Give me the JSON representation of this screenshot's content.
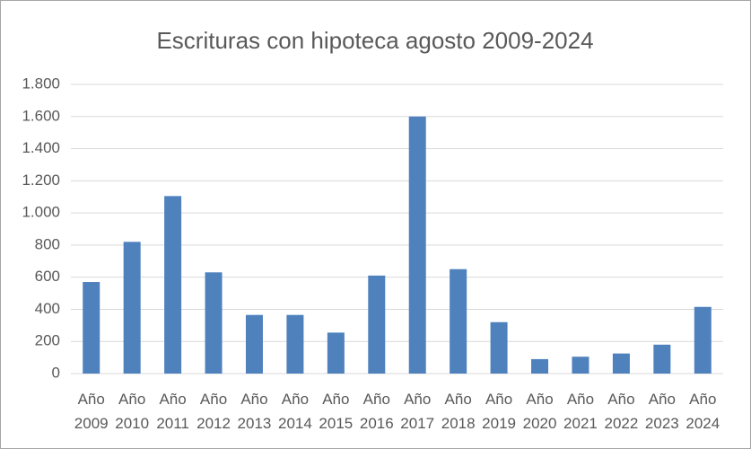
{
  "chart_data": {
    "type": "bar",
    "title": "Escrituras con hipoteca agosto 2009-2024",
    "categories": [
      "Año 2009",
      "Año 2010",
      "Año 2011",
      "Año 2012",
      "Año 2013",
      "Año 2014",
      "Año 2015",
      "Año 2016",
      "Año 2017",
      "Año 2018",
      "Año 2019",
      "Año 2020",
      "Año 2021",
      "Año 2022",
      "Año 2023",
      "Año 2024"
    ],
    "values": [
      570,
      820,
      1105,
      630,
      365,
      365,
      255,
      610,
      1600,
      650,
      320,
      90,
      105,
      125,
      180,
      415
    ],
    "color": "#4f81bd",
    "ylim": [
      0,
      1800
    ],
    "yticks": [
      0,
      200,
      400,
      600,
      800,
      {
        "value": 1000,
        "label": "1.000"
      },
      {
        "value": 1200,
        "label": "1.200"
      },
      {
        "value": 1400,
        "label": "1.400"
      },
      {
        "value": 1600,
        "label": "1.600"
      },
      {
        "value": 1800,
        "label": "1.800"
      }
    ],
    "grid": true
  }
}
